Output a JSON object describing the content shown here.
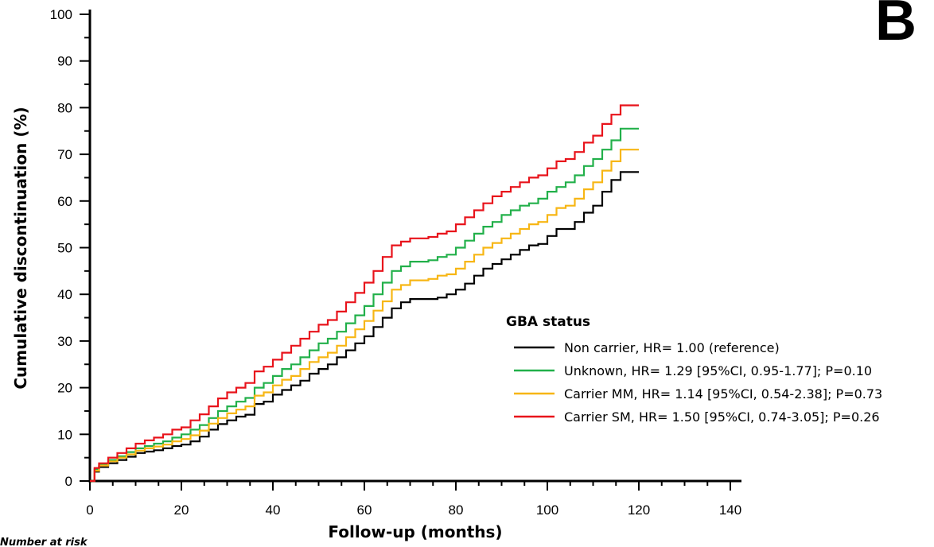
{
  "panel_letter": "B",
  "number_at_risk_label": "Number at risk",
  "chart_data": {
    "type": "line",
    "step": true,
    "title": "",
    "xlabel": "Follow-up (months)",
    "ylabel": "Cumulative discontinuation (%)",
    "xlim": [
      0,
      140
    ],
    "ylim": [
      0,
      100
    ],
    "xticks": [
      0,
      20,
      40,
      60,
      80,
      100,
      120,
      140
    ],
    "yticks": [
      0,
      10,
      20,
      30,
      40,
      50,
      60,
      70,
      80,
      90,
      100
    ],
    "grid": false,
    "legend": {
      "title": "GBA status",
      "placement": "right"
    },
    "series": [
      {
        "name": "Non carrier, HR= 1.00 (reference)",
        "color": "#000000",
        "points": [
          [
            0,
            0
          ],
          [
            1,
            2
          ],
          [
            2,
            3
          ],
          [
            4,
            3.8
          ],
          [
            6,
            4.5
          ],
          [
            8,
            5.2
          ],
          [
            10,
            6
          ],
          [
            12,
            6.3
          ],
          [
            14,
            6.6
          ],
          [
            16,
            7
          ],
          [
            18,
            7.5
          ],
          [
            20,
            7.8
          ],
          [
            22,
            8.5
          ],
          [
            24,
            9.5
          ],
          [
            26,
            11
          ],
          [
            28,
            12.2
          ],
          [
            30,
            13
          ],
          [
            32,
            13.8
          ],
          [
            34,
            14.2
          ],
          [
            36,
            16.5
          ],
          [
            38,
            17
          ],
          [
            40,
            18.5
          ],
          [
            42,
            19.5
          ],
          [
            44,
            20.5
          ],
          [
            46,
            21.5
          ],
          [
            48,
            23
          ],
          [
            50,
            24
          ],
          [
            52,
            25
          ],
          [
            54,
            26.5
          ],
          [
            56,
            28
          ],
          [
            58,
            29.5
          ],
          [
            60,
            31
          ],
          [
            62,
            33
          ],
          [
            64,
            35
          ],
          [
            66,
            37
          ],
          [
            68,
            38.3
          ],
          [
            70,
            39
          ],
          [
            72,
            39
          ],
          [
            74,
            39
          ],
          [
            76,
            39.3
          ],
          [
            78,
            40
          ],
          [
            80,
            41
          ],
          [
            82,
            42.3
          ],
          [
            84,
            44
          ],
          [
            86,
            45.5
          ],
          [
            88,
            46.5
          ],
          [
            90,
            47.5
          ],
          [
            92,
            48.5
          ],
          [
            94,
            49.5
          ],
          [
            96,
            50.5
          ],
          [
            98,
            50.8
          ],
          [
            100,
            52.5
          ],
          [
            102,
            54
          ],
          [
            104,
            54
          ],
          [
            106,
            55.5
          ],
          [
            108,
            57.5
          ],
          [
            110,
            59
          ],
          [
            112,
            62
          ],
          [
            114,
            64.5
          ],
          [
            116,
            66.2
          ],
          [
            120,
            66.2
          ]
        ]
      },
      {
        "name": "Unknown, HR= 1.29 [95%CI, 0.95-1.77]; P=0.10",
        "color": "#22b04a",
        "points": [
          [
            0,
            0
          ],
          [
            1,
            2.5
          ],
          [
            2,
            3.5
          ],
          [
            4,
            4.5
          ],
          [
            6,
            5.3
          ],
          [
            8,
            6.2
          ],
          [
            10,
            7
          ],
          [
            12,
            7.5
          ],
          [
            14,
            8
          ],
          [
            16,
            8.5
          ],
          [
            18,
            9.3
          ],
          [
            20,
            10
          ],
          [
            22,
            11
          ],
          [
            24,
            12
          ],
          [
            26,
            13.5
          ],
          [
            28,
            15
          ],
          [
            30,
            16
          ],
          [
            32,
            17
          ],
          [
            34,
            17.8
          ],
          [
            36,
            20
          ],
          [
            38,
            21
          ],
          [
            40,
            22.5
          ],
          [
            42,
            24
          ],
          [
            44,
            25
          ],
          [
            46,
            26.5
          ],
          [
            48,
            28
          ],
          [
            50,
            29.5
          ],
          [
            52,
            30.5
          ],
          [
            54,
            32
          ],
          [
            56,
            33.8
          ],
          [
            58,
            35.5
          ],
          [
            60,
            37.5
          ],
          [
            62,
            40
          ],
          [
            64,
            42.5
          ],
          [
            66,
            45
          ],
          [
            68,
            46
          ],
          [
            70,
            47
          ],
          [
            72,
            47
          ],
          [
            74,
            47.3
          ],
          [
            76,
            48
          ],
          [
            78,
            48.5
          ],
          [
            80,
            50
          ],
          [
            82,
            51.5
          ],
          [
            84,
            53
          ],
          [
            86,
            54.5
          ],
          [
            88,
            55.5
          ],
          [
            90,
            57
          ],
          [
            92,
            58
          ],
          [
            94,
            59
          ],
          [
            96,
            59.5
          ],
          [
            98,
            60.5
          ],
          [
            100,
            62
          ],
          [
            102,
            63
          ],
          [
            104,
            64
          ],
          [
            106,
            65.5
          ],
          [
            108,
            67.5
          ],
          [
            110,
            69
          ],
          [
            112,
            71
          ],
          [
            114,
            73
          ],
          [
            116,
            75.5
          ],
          [
            120,
            75.5
          ]
        ]
      },
      {
        "name": "Carrier MM, HR= 1.14 [95%CI, 0.54-2.38]; P=0.73",
        "color": "#f7b614",
        "points": [
          [
            0,
            0
          ],
          [
            1,
            2.2
          ],
          [
            2,
            3.3
          ],
          [
            4,
            4.2
          ],
          [
            6,
            5
          ],
          [
            8,
            5.7
          ],
          [
            10,
            6.5
          ],
          [
            12,
            7
          ],
          [
            14,
            7.4
          ],
          [
            16,
            7.8
          ],
          [
            18,
            8.5
          ],
          [
            20,
            9
          ],
          [
            22,
            9.8
          ],
          [
            24,
            10.8
          ],
          [
            26,
            12.3
          ],
          [
            28,
            13.5
          ],
          [
            30,
            14.5
          ],
          [
            32,
            15.3
          ],
          [
            34,
            16
          ],
          [
            36,
            18.3
          ],
          [
            38,
            19
          ],
          [
            40,
            20.5
          ],
          [
            42,
            21.7
          ],
          [
            44,
            22.5
          ],
          [
            46,
            24
          ],
          [
            48,
            25.5
          ],
          [
            50,
            26.5
          ],
          [
            52,
            27.5
          ],
          [
            54,
            29
          ],
          [
            56,
            30.8
          ],
          [
            58,
            32.5
          ],
          [
            60,
            34.3
          ],
          [
            62,
            36.5
          ],
          [
            64,
            38.5
          ],
          [
            66,
            41
          ],
          [
            68,
            42
          ],
          [
            70,
            43
          ],
          [
            72,
            43
          ],
          [
            74,
            43.3
          ],
          [
            76,
            44
          ],
          [
            78,
            44.3
          ],
          [
            80,
            45.5
          ],
          [
            82,
            47
          ],
          [
            84,
            48.5
          ],
          [
            86,
            50
          ],
          [
            88,
            51
          ],
          [
            90,
            52
          ],
          [
            92,
            53
          ],
          [
            94,
            54
          ],
          [
            96,
            55
          ],
          [
            98,
            55.5
          ],
          [
            100,
            57
          ],
          [
            102,
            58.5
          ],
          [
            104,
            59
          ],
          [
            106,
            60.5
          ],
          [
            108,
            62.5
          ],
          [
            110,
            64
          ],
          [
            112,
            66.5
          ],
          [
            114,
            68.5
          ],
          [
            116,
            71
          ],
          [
            120,
            71
          ]
        ]
      },
      {
        "name": "Carrier SM, HR= 1.50 [95%CI, 0.74-3.05]; P=0.26",
        "color": "#e8131b",
        "points": [
          [
            0,
            0
          ],
          [
            1,
            2.8
          ],
          [
            2,
            3.8
          ],
          [
            4,
            5
          ],
          [
            6,
            6
          ],
          [
            8,
            7
          ],
          [
            10,
            8
          ],
          [
            12,
            8.7
          ],
          [
            14,
            9.3
          ],
          [
            16,
            10
          ],
          [
            18,
            11
          ],
          [
            20,
            11.5
          ],
          [
            22,
            13
          ],
          [
            24,
            14.3
          ],
          [
            26,
            16
          ],
          [
            28,
            17.7
          ],
          [
            30,
            19
          ],
          [
            32,
            20
          ],
          [
            34,
            21
          ],
          [
            36,
            23.5
          ],
          [
            38,
            24.5
          ],
          [
            40,
            26
          ],
          [
            42,
            27.5
          ],
          [
            44,
            29
          ],
          [
            46,
            30.5
          ],
          [
            48,
            32
          ],
          [
            50,
            33.5
          ],
          [
            52,
            34.5
          ],
          [
            54,
            36.3
          ],
          [
            56,
            38.3
          ],
          [
            58,
            40.3
          ],
          [
            60,
            42.5
          ],
          [
            62,
            45
          ],
          [
            64,
            48
          ],
          [
            66,
            50.5
          ],
          [
            68,
            51.3
          ],
          [
            70,
            52
          ],
          [
            72,
            52
          ],
          [
            74,
            52.3
          ],
          [
            76,
            53
          ],
          [
            78,
            53.5
          ],
          [
            80,
            55
          ],
          [
            82,
            56.5
          ],
          [
            84,
            58
          ],
          [
            86,
            59.5
          ],
          [
            88,
            61
          ],
          [
            90,
            62
          ],
          [
            92,
            63
          ],
          [
            94,
            64
          ],
          [
            96,
            65
          ],
          [
            98,
            65.5
          ],
          [
            100,
            67
          ],
          [
            102,
            68.5
          ],
          [
            104,
            69
          ],
          [
            106,
            70.5
          ],
          [
            108,
            72.5
          ],
          [
            110,
            74
          ],
          [
            112,
            76.5
          ],
          [
            114,
            78.5
          ],
          [
            116,
            80.5
          ],
          [
            120,
            80.5
          ]
        ]
      }
    ]
  }
}
